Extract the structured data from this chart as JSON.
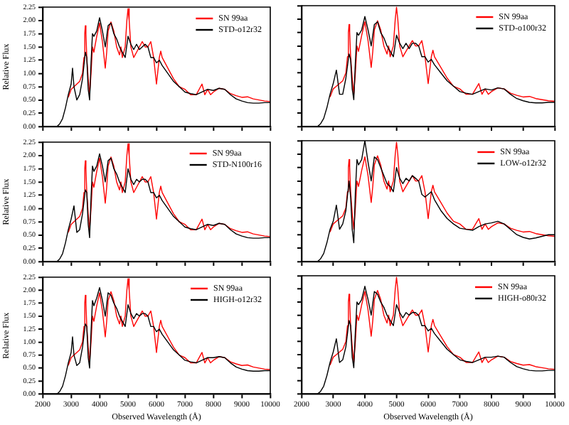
{
  "chart_data": [
    {
      "type": "line",
      "ylabel": "Relative Flux",
      "xlim": [
        2000,
        10000
      ],
      "ylim": [
        0,
        2.25
      ],
      "xticks": [
        2000,
        3000,
        4000,
        5000,
        6000,
        7000,
        8000,
        9000,
        10000
      ],
      "yticks": [
        {
          "value": 0,
          "label": "0.00"
        },
        {
          "value": 0.25,
          "label": "0.25"
        },
        {
          "value": 0.5,
          "label": "0.50"
        },
        {
          "value": 0.75,
          "label": "0.75"
        },
        {
          "value": 1,
          "label": "1.00"
        },
        {
          "value": 1.25,
          "label": "1.25"
        },
        {
          "value": 1.5,
          "label": "1.50"
        },
        {
          "value": 1.75,
          "label": "1.75"
        },
        {
          "value": 2,
          "label": "2.00"
        },
        {
          "value": 2.25,
          "label": "2.25"
        }
      ],
      "tick_labels": "y",
      "legend": "top right",
      "series": [
        {
          "name": "SN 99aa",
          "color": "#ff0000",
          "x": [
            2900,
            3000,
            3100,
            3200,
            3300,
            3400,
            3450,
            3480,
            3500,
            3520,
            3550,
            3600,
            3650,
            3700,
            3750,
            3800,
            3900,
            4000,
            4100,
            4200,
            4250,
            4300,
            4400,
            4500,
            4600,
            4700,
            4750,
            4800,
            4900,
            4960,
            5000,
            5040,
            5100,
            5200,
            5300,
            5400,
            5500,
            5600,
            5700,
            5800,
            5900,
            6000,
            6100,
            6150,
            6200,
            6400,
            6600,
            6800,
            7000,
            7200,
            7400,
            7600,
            7700,
            7800,
            7900,
            8000,
            8200,
            8400,
            8600,
            8800,
            9000,
            9200,
            9400,
            9600,
            9800,
            10000
          ],
          "values": [
            0.55,
            0.7,
            0.75,
            0.8,
            0.85,
            1.0,
            1.3,
            1.75,
            1.9,
            1.75,
            1.3,
            0.9,
            0.6,
            1.0,
            1.5,
            1.4,
            1.7,
            1.95,
            1.6,
            1.1,
            1.4,
            1.8,
            1.97,
            1.8,
            1.5,
            1.35,
            1.5,
            1.3,
            1.5,
            2.0,
            2.22,
            2.0,
            1.5,
            1.3,
            1.4,
            1.5,
            1.6,
            1.5,
            1.5,
            1.6,
            1.3,
            0.8,
            1.3,
            1.42,
            1.3,
            1.1,
            0.9,
            0.75,
            0.7,
            0.6,
            0.6,
            0.8,
            0.6,
            0.7,
            0.6,
            0.65,
            0.72,
            0.7,
            0.62,
            0.58,
            0.55,
            0.56,
            0.52,
            0.5,
            0.48,
            0.47
          ]
        },
        {
          "name": "STD-o12r32",
          "color": "#000000",
          "x": [
            2500,
            2600,
            2700,
            2800,
            2900,
            3000,
            3050,
            3100,
            3200,
            3300,
            3400,
            3500,
            3550,
            3600,
            3650,
            3700,
            3750,
            3800,
            3900,
            4000,
            4100,
            4200,
            4300,
            4400,
            4500,
            4600,
            4700,
            4800,
            4900,
            5000,
            5100,
            5200,
            5300,
            5400,
            5500,
            5600,
            5700,
            5800,
            5900,
            6000,
            6100,
            6200,
            6400,
            6600,
            6800,
            7000,
            7200,
            7400,
            7600,
            7800,
            8000,
            8200,
            8400,
            8600,
            8800,
            9000,
            9200,
            9400,
            9600,
            9800,
            10000
          ],
          "values": [
            0,
            0.05,
            0.15,
            0.35,
            0.6,
            0.8,
            1.1,
            0.75,
            0.5,
            0.6,
            0.9,
            1.4,
            1.3,
            0.7,
            0.5,
            1.2,
            1.75,
            1.7,
            1.8,
            2.05,
            1.8,
            1.5,
            1.9,
            1.95,
            1.75,
            1.65,
            1.5,
            1.4,
            1.3,
            1.7,
            1.55,
            1.45,
            1.55,
            1.45,
            1.5,
            1.55,
            1.5,
            1.3,
            1.3,
            1.2,
            1.25,
            1.15,
            1,
            0.85,
            0.75,
            0.65,
            0.62,
            0.6,
            0.65,
            0.7,
            0.68,
            0.72,
            0.7,
            0.6,
            0.52,
            0.48,
            0.45,
            0.44,
            0.44,
            0.45,
            0.45
          ]
        }
      ]
    },
    {
      "type": "line",
      "xlim": [
        2000,
        10000
      ],
      "ylim": [
        0,
        2.25
      ],
      "xticks": [
        2000,
        3000,
        4000,
        5000,
        6000,
        7000,
        8000,
        9000,
        10000
      ],
      "yticks": [
        {
          "value": 0,
          "label": null
        },
        {
          "value": 0.25,
          "label": null
        },
        {
          "value": 0.5,
          "label": null
        },
        {
          "value": 0.75,
          "label": null
        },
        {
          "value": 1,
          "label": null
        },
        {
          "value": 1.25,
          "label": null
        },
        {
          "value": 1.5,
          "label": null
        },
        {
          "value": 1.75,
          "label": null
        },
        {
          "value": 2,
          "label": null
        },
        {
          "value": 2.25,
          "label": null
        }
      ],
      "tick_labels": false,
      "legend": "top right",
      "series": [
        {
          "name": "SN 99aa",
          "color": "#ff0000",
          "x": [
            2900,
            3000,
            3100,
            3200,
            3300,
            3400,
            3450,
            3480,
            3500,
            3520,
            3550,
            3600,
            3650,
            3700,
            3750,
            3800,
            3900,
            4000,
            4100,
            4200,
            4250,
            4300,
            4400,
            4500,
            4600,
            4700,
            4750,
            4800,
            4900,
            4960,
            5000,
            5040,
            5100,
            5200,
            5300,
            5400,
            5500,
            5600,
            5700,
            5800,
            5900,
            6000,
            6100,
            6150,
            6200,
            6400,
            6600,
            6800,
            7000,
            7200,
            7400,
            7600,
            7700,
            7800,
            7900,
            8000,
            8200,
            8400,
            8600,
            8800,
            9000,
            9200,
            9400,
            9600,
            9800,
            10000
          ],
          "values": [
            0.55,
            0.7,
            0.75,
            0.8,
            0.85,
            1.0,
            1.3,
            1.75,
            1.9,
            1.75,
            1.3,
            0.9,
            0.6,
            1.0,
            1.5,
            1.4,
            1.7,
            1.95,
            1.6,
            1.1,
            1.4,
            1.8,
            1.97,
            1.8,
            1.5,
            1.35,
            1.5,
            1.3,
            1.5,
            2.0,
            2.22,
            2.0,
            1.5,
            1.3,
            1.4,
            1.5,
            1.6,
            1.5,
            1.5,
            1.6,
            1.3,
            0.8,
            1.3,
            1.42,
            1.3,
            1.1,
            0.9,
            0.75,
            0.7,
            0.6,
            0.6,
            0.8,
            0.6,
            0.7,
            0.6,
            0.65,
            0.72,
            0.7,
            0.62,
            0.58,
            0.55,
            0.56,
            0.52,
            0.5,
            0.48,
            0.47
          ]
        },
        {
          "name": "STD-o100r32",
          "color": "#000000",
          "x": [
            2500,
            2600,
            2700,
            2800,
            2900,
            3000,
            3100,
            3200,
            3300,
            3400,
            3500,
            3550,
            3600,
            3650,
            3700,
            3750,
            3800,
            3900,
            4000,
            4100,
            4200,
            4300,
            4400,
            4500,
            4600,
            4700,
            4800,
            4900,
            5000,
            5100,
            5200,
            5300,
            5400,
            5500,
            5600,
            5700,
            5800,
            5900,
            6000,
            6100,
            6200,
            6400,
            6600,
            6800,
            7000,
            7200,
            7400,
            7600,
            7800,
            8000,
            8200,
            8400,
            8600,
            8800,
            9000,
            9200,
            9400,
            9600,
            9800,
            10000
          ],
          "values": [
            0,
            0.05,
            0.15,
            0.35,
            0.6,
            0.8,
            1.05,
            0.6,
            0.6,
            0.9,
            1.35,
            1.25,
            0.7,
            0.5,
            1.2,
            1.75,
            1.7,
            1.8,
            2.05,
            1.8,
            1.5,
            1.9,
            1.95,
            1.75,
            1.65,
            1.5,
            1.4,
            1.3,
            1.7,
            1.55,
            1.45,
            1.55,
            1.45,
            1.55,
            1.55,
            1.5,
            1.3,
            1.3,
            1.2,
            1.25,
            1.15,
            1,
            0.85,
            0.75,
            0.65,
            0.62,
            0.6,
            0.65,
            0.7,
            0.68,
            0.72,
            0.7,
            0.6,
            0.52,
            0.48,
            0.45,
            0.44,
            0.44,
            0.45,
            0.45
          ]
        }
      ]
    },
    {
      "type": "line",
      "ylabel": "Relative Flux",
      "xlim": [
        2000,
        10000
      ],
      "ylim": [
        0,
        2.25
      ],
      "xticks": [
        2000,
        3000,
        4000,
        5000,
        6000,
        7000,
        8000,
        9000,
        10000
      ],
      "yticks": [
        {
          "value": 0,
          "label": "0.00"
        },
        {
          "value": 0.25,
          "label": "0.25"
        },
        {
          "value": 0.5,
          "label": "0.50"
        },
        {
          "value": 0.75,
          "label": "0.75"
        },
        {
          "value": 1,
          "label": "1.00"
        },
        {
          "value": 1.25,
          "label": "1.25"
        },
        {
          "value": 1.5,
          "label": "1.50"
        },
        {
          "value": 1.75,
          "label": "1.75"
        },
        {
          "value": 2,
          "label": "2.00"
        },
        {
          "value": 2.25,
          "label": "2.25"
        }
      ],
      "tick_labels": "y",
      "legend": "top right",
      "series": [
        {
          "name": "SN 99aa",
          "color": "#ff0000",
          "x": [
            2900,
            3000,
            3100,
            3200,
            3300,
            3400,
            3450,
            3480,
            3500,
            3520,
            3550,
            3600,
            3650,
            3700,
            3750,
            3800,
            3900,
            4000,
            4100,
            4200,
            4250,
            4300,
            4400,
            4500,
            4600,
            4700,
            4750,
            4800,
            4900,
            4960,
            5000,
            5040,
            5100,
            5200,
            5300,
            5400,
            5500,
            5600,
            5700,
            5800,
            5900,
            6000,
            6100,
            6150,
            6200,
            6400,
            6600,
            6800,
            7000,
            7200,
            7400,
            7600,
            7700,
            7800,
            7900,
            8000,
            8200,
            8400,
            8600,
            8800,
            9000,
            9200,
            9400,
            9600,
            9800,
            10000
          ],
          "values": [
            0.55,
            0.7,
            0.75,
            0.8,
            0.85,
            1.0,
            1.3,
            1.75,
            1.9,
            1.75,
            1.3,
            0.9,
            0.6,
            1.0,
            1.5,
            1.4,
            1.7,
            1.95,
            1.6,
            1.1,
            1.4,
            1.8,
            1.97,
            1.8,
            1.5,
            1.35,
            1.5,
            1.3,
            1.5,
            2.0,
            2.22,
            2.0,
            1.5,
            1.3,
            1.4,
            1.5,
            1.6,
            1.5,
            1.5,
            1.6,
            1.3,
            0.8,
            1.3,
            1.42,
            1.3,
            1.1,
            0.9,
            0.75,
            0.7,
            0.6,
            0.6,
            0.8,
            0.6,
            0.7,
            0.6,
            0.65,
            0.72,
            0.7,
            0.62,
            0.58,
            0.55,
            0.56,
            0.52,
            0.5,
            0.48,
            0.47
          ]
        },
        {
          "name": "STD-N100r16",
          "color": "#000000",
          "x": [
            2500,
            2600,
            2700,
            2800,
            2900,
            3000,
            3100,
            3200,
            3300,
            3400,
            3500,
            3550,
            3600,
            3650,
            3700,
            3750,
            3800,
            3900,
            4000,
            4100,
            4200,
            4300,
            4400,
            4500,
            4600,
            4700,
            4800,
            4900,
            5000,
            5100,
            5200,
            5300,
            5400,
            5500,
            5600,
            5700,
            5800,
            5900,
            6000,
            6100,
            6200,
            6400,
            6600,
            6800,
            7000,
            7200,
            7400,
            7600,
            7800,
            8000,
            8200,
            8400,
            8600,
            8800,
            9000,
            9200,
            9400,
            9600,
            9800,
            10000
          ],
          "values": [
            0,
            0.05,
            0.15,
            0.35,
            0.6,
            0.8,
            1.05,
            0.55,
            0.6,
            0.9,
            1.35,
            1.3,
            0.7,
            0.45,
            1.2,
            1.8,
            1.7,
            1.8,
            2.03,
            1.8,
            1.5,
            1.9,
            1.95,
            1.75,
            1.65,
            1.5,
            1.4,
            1.3,
            1.75,
            1.55,
            1.45,
            1.55,
            1.5,
            1.55,
            1.55,
            1.5,
            1.3,
            1.3,
            1.2,
            1.25,
            1.15,
            1,
            0.85,
            0.75,
            0.65,
            0.62,
            0.6,
            0.65,
            0.7,
            0.68,
            0.72,
            0.7,
            0.6,
            0.52,
            0.48,
            0.45,
            0.44,
            0.44,
            0.45,
            0.45
          ]
        }
      ]
    },
    {
      "type": "line",
      "xlim": [
        2000,
        10000
      ],
      "ylim": [
        0,
        2.25
      ],
      "xticks": [
        2000,
        3000,
        4000,
        5000,
        6000,
        7000,
        8000,
        9000,
        10000
      ],
      "yticks": [
        {
          "value": 0,
          "label": null
        },
        {
          "value": 0.25,
          "label": null
        },
        {
          "value": 0.5,
          "label": null
        },
        {
          "value": 0.75,
          "label": null
        },
        {
          "value": 1,
          "label": null
        },
        {
          "value": 1.25,
          "label": null
        },
        {
          "value": 1.5,
          "label": null
        },
        {
          "value": 1.75,
          "label": null
        },
        {
          "value": 2,
          "label": null
        },
        {
          "value": 2.25,
          "label": null
        }
      ],
      "tick_labels": false,
      "legend": "top right",
      "series": [
        {
          "name": "SN 99aa",
          "color": "#ff0000",
          "x": [
            2900,
            3000,
            3100,
            3200,
            3300,
            3400,
            3450,
            3480,
            3500,
            3520,
            3550,
            3600,
            3650,
            3700,
            3750,
            3800,
            3900,
            4000,
            4100,
            4200,
            4250,
            4300,
            4400,
            4500,
            4600,
            4700,
            4750,
            4800,
            4900,
            4960,
            5000,
            5040,
            5100,
            5200,
            5300,
            5400,
            5500,
            5600,
            5700,
            5800,
            5900,
            6000,
            6100,
            6150,
            6200,
            6400,
            6600,
            6800,
            7000,
            7200,
            7400,
            7600,
            7700,
            7800,
            7900,
            8000,
            8200,
            8400,
            8600,
            8800,
            9000,
            9200,
            9400,
            9600,
            9800,
            10000
          ],
          "values": [
            0.55,
            0.7,
            0.75,
            0.8,
            0.85,
            1.0,
            1.3,
            1.75,
            1.9,
            1.75,
            1.3,
            0.9,
            0.6,
            1.0,
            1.5,
            1.4,
            1.7,
            1.95,
            1.6,
            1.1,
            1.4,
            1.8,
            1.97,
            1.8,
            1.5,
            1.35,
            1.5,
            1.3,
            1.5,
            2.0,
            2.22,
            2.0,
            1.5,
            1.3,
            1.4,
            1.5,
            1.6,
            1.5,
            1.5,
            1.6,
            1.3,
            0.8,
            1.3,
            1.42,
            1.3,
            1.1,
            0.9,
            0.75,
            0.7,
            0.6,
            0.6,
            0.8,
            0.6,
            0.7,
            0.6,
            0.65,
            0.72,
            0.7,
            0.62,
            0.58,
            0.55,
            0.56,
            0.52,
            0.5,
            0.48,
            0.47
          ]
        },
        {
          "name": "LOW-o12r32",
          "color": "#000000",
          "x": [
            2500,
            2600,
            2700,
            2800,
            2900,
            3000,
            3100,
            3200,
            3300,
            3400,
            3500,
            3550,
            3600,
            3650,
            3700,
            3750,
            3800,
            3900,
            4000,
            4100,
            4200,
            4300,
            4400,
            4500,
            4600,
            4700,
            4800,
            4900,
            5000,
            5100,
            5200,
            5300,
            5400,
            5500,
            5600,
            5700,
            5800,
            5900,
            6000,
            6100,
            6200,
            6400,
            6600,
            6800,
            7000,
            7200,
            7400,
            7600,
            7800,
            8000,
            8200,
            8400,
            8600,
            8800,
            9000,
            9200,
            9400,
            9600,
            9800,
            10000
          ],
          "values": [
            0,
            0.05,
            0.15,
            0.35,
            0.6,
            0.75,
            1.05,
            0.6,
            0.7,
            0.95,
            1.5,
            1.2,
            0.6,
            0.35,
            1.3,
            1.9,
            1.8,
            1.9,
            2.25,
            1.85,
            1.5,
            1.95,
            1.9,
            1.75,
            1.6,
            1.45,
            1.4,
            1.3,
            1.75,
            1.55,
            1.45,
            1.55,
            1.5,
            1.6,
            1.55,
            1.5,
            1.25,
            1.2,
            1.25,
            1.3,
            1.15,
            0.95,
            0.8,
            0.7,
            0.62,
            0.6,
            0.58,
            0.65,
            0.7,
            0.72,
            0.75,
            0.7,
            0.6,
            0.5,
            0.45,
            0.42,
            0.44,
            0.47,
            0.5,
            0.5
          ]
        }
      ]
    },
    {
      "type": "line",
      "xlabel": "Observed Wavelength (Å)",
      "ylabel": "Relative Flux",
      "xlim": [
        2000,
        10000
      ],
      "ylim": [
        0,
        2.25
      ],
      "xticks": [
        2000,
        3000,
        4000,
        5000,
        6000,
        7000,
        8000,
        9000,
        10000
      ],
      "yticks": [
        {
          "value": 0,
          "label": "0.00"
        },
        {
          "value": 0.25,
          "label": "0.25"
        },
        {
          "value": 0.5,
          "label": "0.50"
        },
        {
          "value": 0.75,
          "label": "0.75"
        },
        {
          "value": 1,
          "label": "1.00"
        },
        {
          "value": 1.25,
          "label": "1.25"
        },
        {
          "value": 1.5,
          "label": "1.50"
        },
        {
          "value": 1.75,
          "label": "1.75"
        },
        {
          "value": 2,
          "label": "2.00"
        },
        {
          "value": 2.25,
          "label": "2.25"
        }
      ],
      "legend": "top right",
      "series": [
        {
          "name": "SN 99aa",
          "color": "#ff0000",
          "x": [
            2900,
            3000,
            3100,
            3200,
            3300,
            3400,
            3450,
            3480,
            3500,
            3520,
            3550,
            3600,
            3650,
            3700,
            3750,
            3800,
            3900,
            4000,
            4100,
            4200,
            4250,
            4300,
            4400,
            4500,
            4600,
            4700,
            4750,
            4800,
            4900,
            4960,
            5000,
            5040,
            5100,
            5200,
            5300,
            5400,
            5500,
            5600,
            5700,
            5800,
            5900,
            6000,
            6100,
            6150,
            6200,
            6400,
            6600,
            6800,
            7000,
            7200,
            7400,
            7600,
            7700,
            7800,
            7900,
            8000,
            8200,
            8400,
            8600,
            8800,
            9000,
            9200,
            9400,
            9600,
            9800,
            10000
          ],
          "values": [
            0.55,
            0.7,
            0.75,
            0.8,
            0.85,
            1.0,
            1.3,
            1.75,
            1.9,
            1.75,
            1.3,
            0.9,
            0.6,
            1.0,
            1.5,
            1.4,
            1.7,
            1.95,
            1.6,
            1.1,
            1.4,
            1.8,
            1.97,
            1.8,
            1.5,
            1.35,
            1.5,
            1.3,
            1.5,
            2.0,
            2.22,
            2.0,
            1.5,
            1.3,
            1.4,
            1.5,
            1.6,
            1.5,
            1.5,
            1.6,
            1.3,
            0.8,
            1.3,
            1.42,
            1.3,
            1.1,
            0.9,
            0.75,
            0.7,
            0.6,
            0.6,
            0.8,
            0.6,
            0.7,
            0.6,
            0.65,
            0.72,
            0.7,
            0.62,
            0.58,
            0.55,
            0.56,
            0.52,
            0.5,
            0.48,
            0.47
          ]
        },
        {
          "name": "HIGH-o12r32",
          "color": "#000000",
          "x": [
            2500,
            2600,
            2700,
            2800,
            2900,
            3000,
            3050,
            3100,
            3200,
            3300,
            3400,
            3500,
            3550,
            3600,
            3650,
            3700,
            3750,
            3800,
            3900,
            4000,
            4100,
            4200,
            4300,
            4400,
            4500,
            4600,
            4700,
            4800,
            4900,
            5000,
            5100,
            5200,
            5300,
            5400,
            5500,
            5600,
            5700,
            5800,
            5900,
            6000,
            6100,
            6200,
            6400,
            6600,
            6800,
            7000,
            7200,
            7400,
            7600,
            7800,
            8000,
            8200,
            8400,
            8600,
            8800,
            9000,
            9200,
            9400,
            9600,
            9800,
            10000
          ],
          "values": [
            0,
            0.05,
            0.15,
            0.35,
            0.6,
            0.8,
            1.1,
            0.75,
            0.55,
            0.6,
            0.9,
            1.35,
            1.3,
            0.7,
            0.5,
            1.2,
            1.8,
            1.7,
            1.85,
            2.05,
            1.8,
            1.5,
            1.95,
            1.9,
            1.75,
            1.65,
            1.5,
            1.4,
            1.3,
            1.72,
            1.55,
            1.45,
            1.55,
            1.5,
            1.55,
            1.55,
            1.5,
            1.3,
            1.3,
            1.2,
            1.25,
            1.15,
            1,
            0.85,
            0.75,
            0.65,
            0.62,
            0.6,
            0.65,
            0.7,
            0.7,
            0.72,
            0.7,
            0.6,
            0.52,
            0.48,
            0.45,
            0.44,
            0.44,
            0.45,
            0.45
          ]
        }
      ]
    },
    {
      "type": "line",
      "xlabel": "Observed Wavelength (Å)",
      "xlim": [
        2000,
        10000
      ],
      "ylim": [
        0,
        2.25
      ],
      "xticks": [
        2000,
        3000,
        4000,
        5000,
        6000,
        7000,
        8000,
        9000,
        10000
      ],
      "yticks": [
        {
          "value": 0,
          "label": null
        },
        {
          "value": 0.25,
          "label": null
        },
        {
          "value": 0.5,
          "label": null
        },
        {
          "value": 0.75,
          "label": null
        },
        {
          "value": 1,
          "label": null
        },
        {
          "value": 1.25,
          "label": null
        },
        {
          "value": 1.5,
          "label": null
        },
        {
          "value": 1.75,
          "label": null
        },
        {
          "value": 2,
          "label": null
        },
        {
          "value": 2.25,
          "label": null
        }
      ],
      "tick_labels": "x",
      "legend": "top right",
      "series": [
        {
          "name": "SN 99aa",
          "color": "#ff0000",
          "x": [
            2900,
            3000,
            3100,
            3200,
            3300,
            3400,
            3450,
            3480,
            3500,
            3520,
            3550,
            3600,
            3650,
            3700,
            3750,
            3800,
            3900,
            4000,
            4100,
            4200,
            4250,
            4300,
            4400,
            4500,
            4600,
            4700,
            4750,
            4800,
            4900,
            4960,
            5000,
            5040,
            5100,
            5200,
            5300,
            5400,
            5500,
            5600,
            5700,
            5800,
            5900,
            6000,
            6100,
            6150,
            6200,
            6400,
            6600,
            6800,
            7000,
            7200,
            7400,
            7600,
            7700,
            7800,
            7900,
            8000,
            8200,
            8400,
            8600,
            8800,
            9000,
            9200,
            9400,
            9600,
            9800,
            10000
          ],
          "values": [
            0.55,
            0.7,
            0.75,
            0.8,
            0.85,
            1.0,
            1.3,
            1.75,
            1.9,
            1.75,
            1.3,
            0.9,
            0.6,
            1.0,
            1.5,
            1.4,
            1.7,
            1.95,
            1.6,
            1.1,
            1.4,
            1.8,
            1.97,
            1.8,
            1.5,
            1.35,
            1.5,
            1.3,
            1.5,
            2.0,
            2.22,
            2.0,
            1.5,
            1.3,
            1.4,
            1.5,
            1.6,
            1.5,
            1.5,
            1.6,
            1.3,
            0.8,
            1.3,
            1.42,
            1.3,
            1.1,
            0.9,
            0.75,
            0.7,
            0.6,
            0.6,
            0.8,
            0.6,
            0.7,
            0.6,
            0.65,
            0.72,
            0.7,
            0.62,
            0.58,
            0.55,
            0.56,
            0.52,
            0.5,
            0.48,
            0.47
          ]
        },
        {
          "name": "HIGH-o80r32",
          "color": "#000000",
          "x": [
            2500,
            2600,
            2700,
            2800,
            2900,
            3000,
            3100,
            3200,
            3300,
            3400,
            3500,
            3550,
            3600,
            3650,
            3700,
            3750,
            3800,
            3900,
            4000,
            4100,
            4200,
            4300,
            4400,
            4500,
            4600,
            4700,
            4800,
            4900,
            5000,
            5100,
            5200,
            5300,
            5400,
            5500,
            5600,
            5700,
            5800,
            5900,
            6000,
            6100,
            6200,
            6400,
            6600,
            6800,
            7000,
            7200,
            7400,
            7600,
            7800,
            8000,
            8200,
            8400,
            8600,
            8800,
            9000,
            9200,
            9400,
            9600,
            9800,
            10000
          ],
          "values": [
            0,
            0.05,
            0.15,
            0.35,
            0.6,
            0.8,
            1.05,
            0.6,
            0.65,
            0.9,
            1.4,
            1.3,
            0.7,
            0.5,
            1.2,
            1.75,
            1.7,
            1.8,
            2.05,
            1.8,
            1.5,
            1.95,
            1.9,
            1.75,
            1.65,
            1.5,
            1.4,
            1.3,
            1.7,
            1.55,
            1.45,
            1.55,
            1.5,
            1.55,
            1.55,
            1.5,
            1.3,
            1.3,
            1.2,
            1.25,
            1.15,
            1,
            0.85,
            0.75,
            0.65,
            0.62,
            0.6,
            0.65,
            0.7,
            0.7,
            0.72,
            0.7,
            0.6,
            0.52,
            0.48,
            0.45,
            0.44,
            0.44,
            0.45,
            0.45
          ]
        }
      ]
    }
  ]
}
